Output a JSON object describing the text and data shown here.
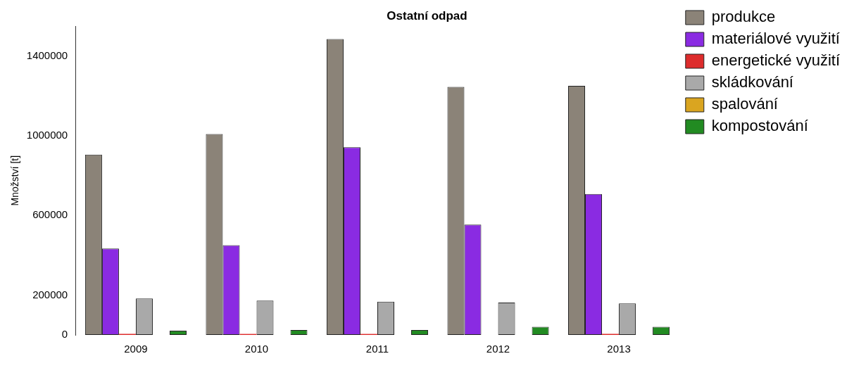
{
  "chart_data": {
    "type": "bar",
    "title": "Ostatní odpad",
    "ylabel": "Množství [t]",
    "categories": [
      "2009",
      "2010",
      "2011",
      "2012",
      "2013"
    ],
    "series": [
      {
        "name": "produkce",
        "color": "#8b8378",
        "values": [
          906000,
          1009000,
          1486000,
          1246000,
          1251000
        ]
      },
      {
        "name": "materiálové využití",
        "color": "#8a2be2",
        "values": [
          434000,
          451000,
          943000,
          554000,
          708000
        ]
      },
      {
        "name": "energetické využití",
        "color": "#dd2c2c",
        "values": [
          5000,
          5000,
          5000,
          0,
          5000
        ]
      },
      {
        "name": "skládkování",
        "color": "#a9a9a9",
        "values": [
          183000,
          172000,
          167000,
          163000,
          158000
        ]
      },
      {
        "name": "spalování",
        "color": "#daa520",
        "values": [
          0,
          0,
          0,
          0,
          0
        ]
      },
      {
        "name": "kompostování",
        "color": "#228b22",
        "values": [
          21000,
          25000,
          25000,
          41000,
          41000
        ]
      }
    ],
    "ylim": [
      0,
      1550000
    ],
    "yticks": [
      0,
      200000,
      600000,
      1000000,
      1400000
    ],
    "grid": false,
    "legend": "top right"
  }
}
